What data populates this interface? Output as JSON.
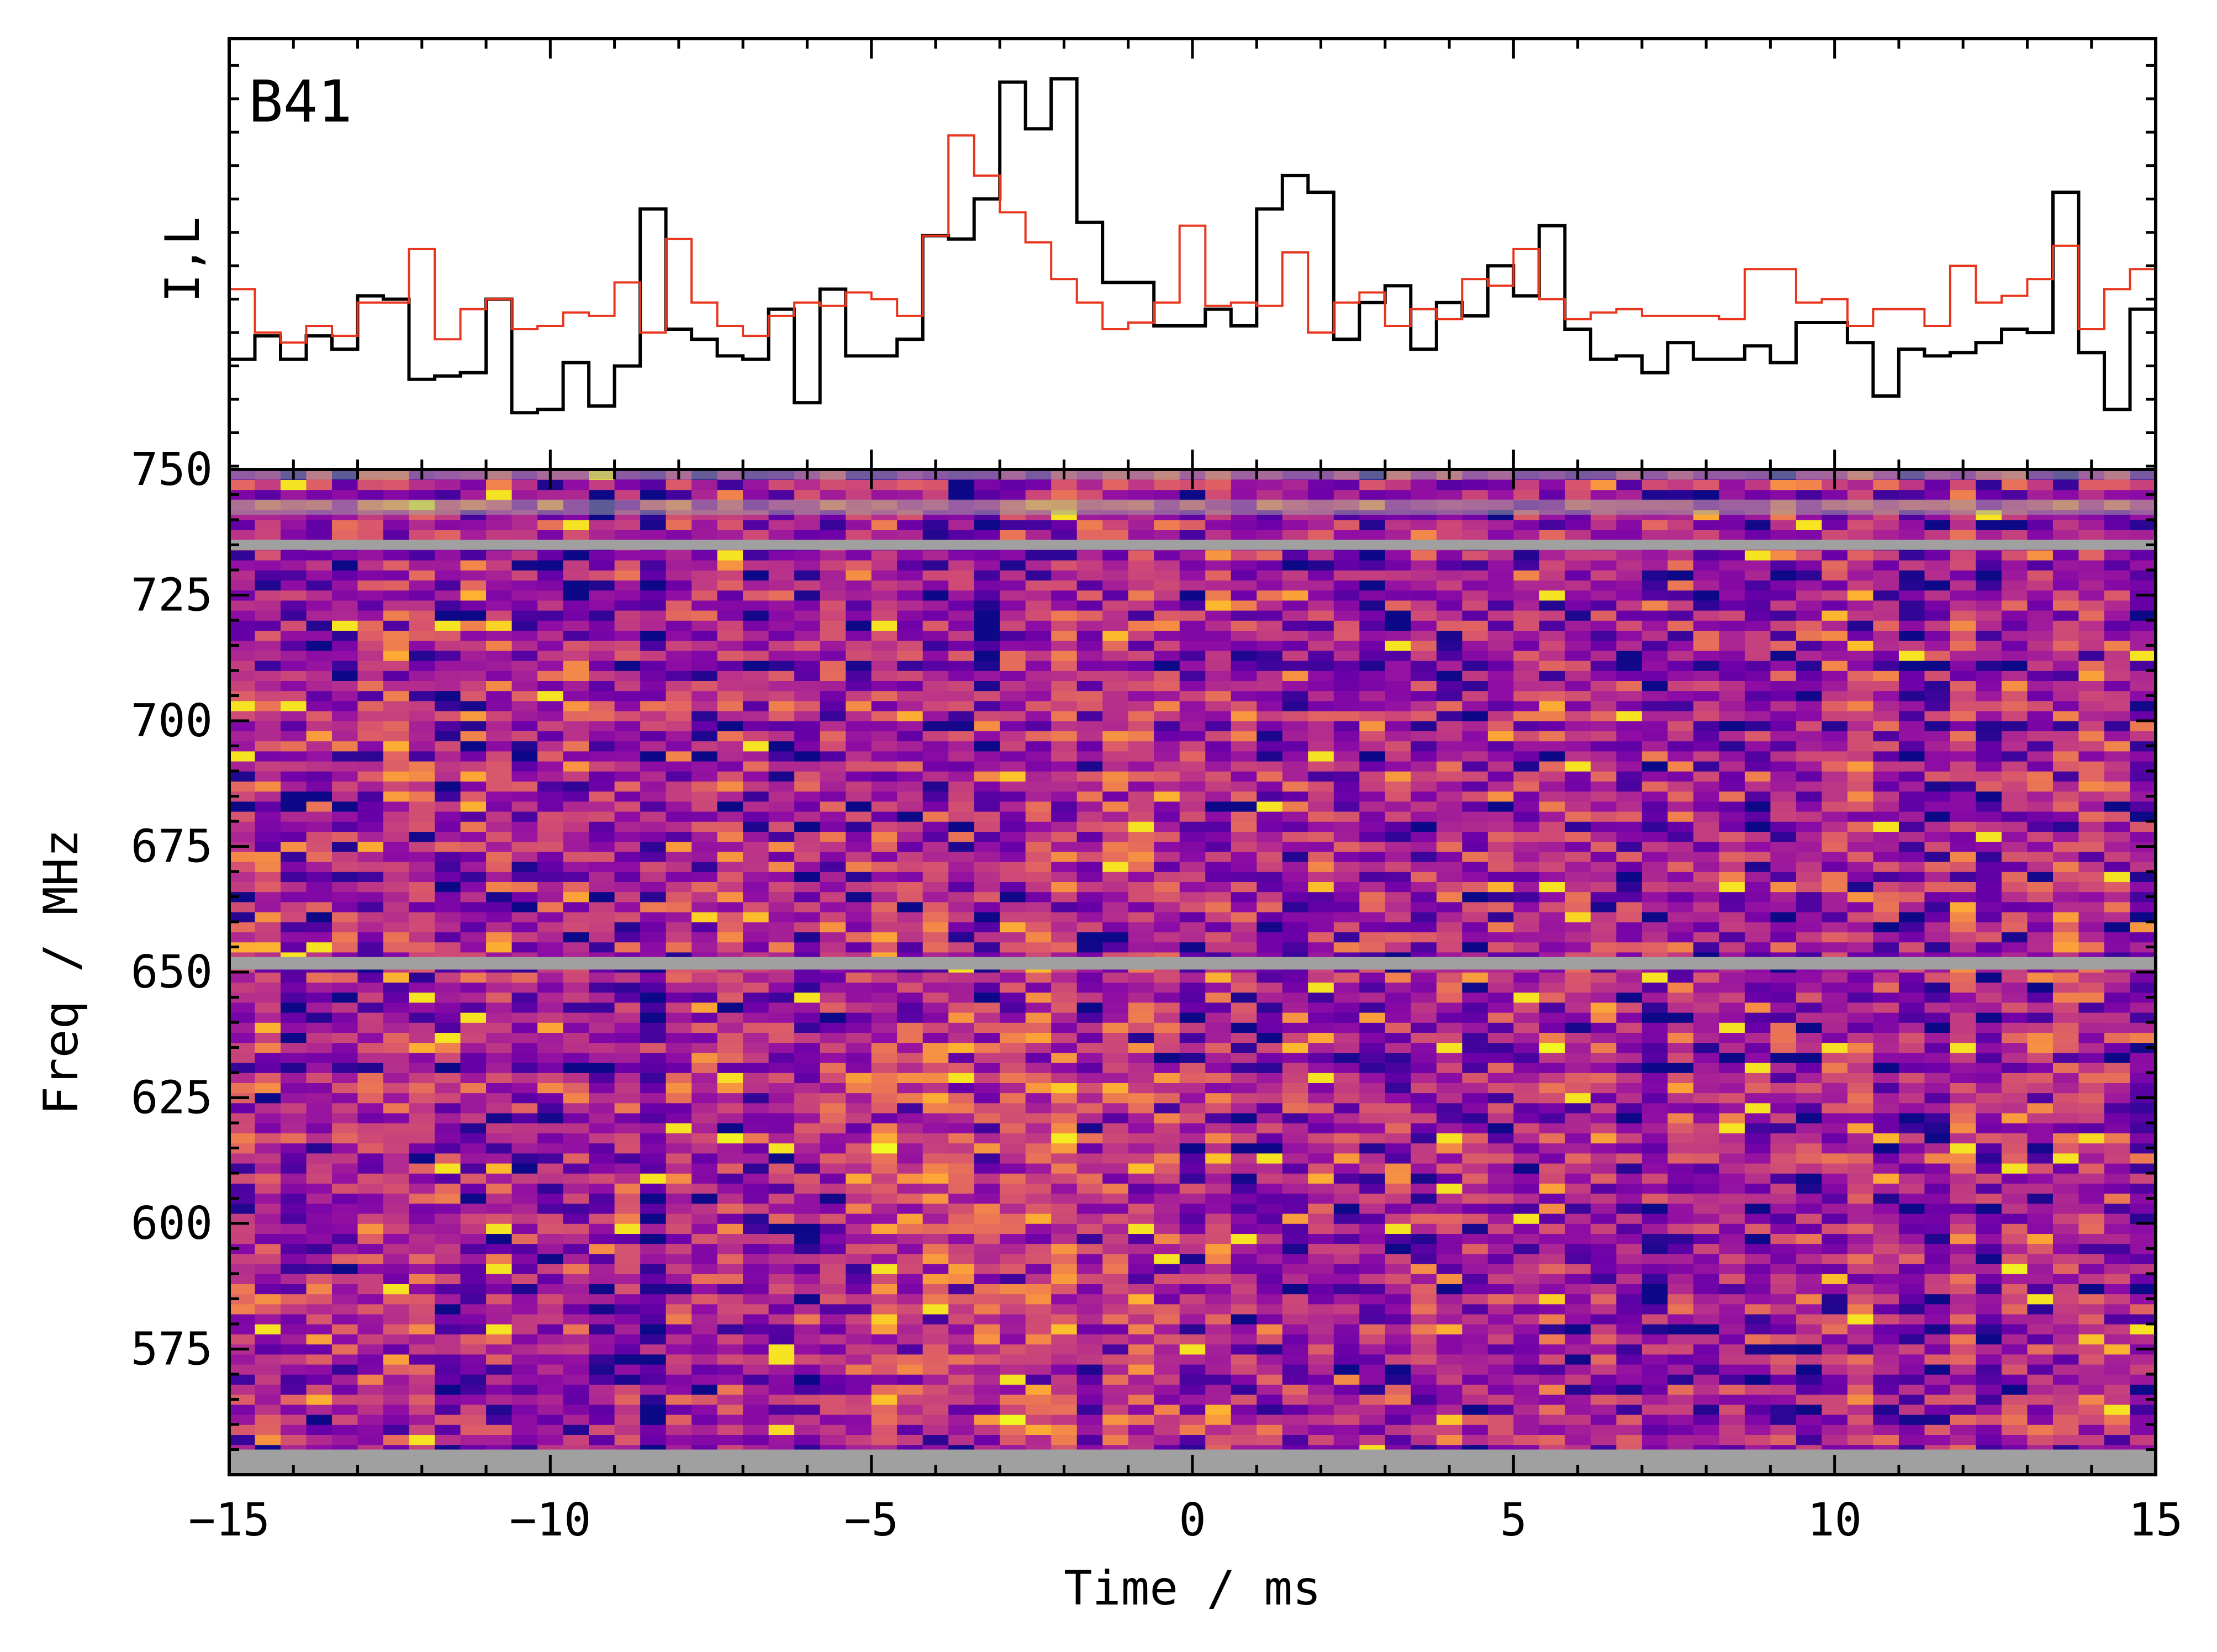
{
  "chart_data": [
    {
      "type": "line",
      "panel": "profile",
      "label": "B41",
      "ylabel": "I,L",
      "xlim": [
        -15,
        15
      ],
      "ylim": [
        -1.05,
        5.4
      ],
      "step": true,
      "colors": {
        "I": "#000000",
        "L": "#e8361e"
      },
      "x": [
        -15.0,
        -14.6,
        -14.2,
        -13.8,
        -13.4,
        -13.0,
        -12.6,
        -12.2,
        -11.8,
        -11.4,
        -11.0,
        -10.6,
        -10.2,
        -9.8,
        -9.4,
        -9.0,
        -8.6,
        -8.2,
        -7.8,
        -7.4,
        -7.0,
        -6.6,
        -6.2,
        -5.8,
        -5.4,
        -5.0,
        -4.6,
        -4.2,
        -3.8,
        -3.4,
        -3.0,
        -2.6,
        -2.2,
        -1.8,
        -1.4,
        -1.0,
        -0.6,
        -0.2,
        0.2,
        0.6,
        1.0,
        1.4,
        1.8,
        2.2,
        2.6,
        3.0,
        3.4,
        3.8,
        4.2,
        4.6,
        5.0,
        5.4,
        5.8,
        6.2,
        6.6,
        7.0,
        7.4,
        7.8,
        8.2,
        8.6,
        9.0,
        9.4,
        9.8,
        10.2,
        10.6,
        11.0,
        11.4,
        11.8,
        12.2,
        12.6,
        13.0,
        13.4,
        13.8,
        14.2,
        14.6
      ],
      "series": [
        {
          "key": "I",
          "values": [
            0.6,
            0.95,
            0.6,
            0.95,
            0.75,
            1.55,
            1.5,
            0.3,
            0.35,
            0.4,
            1.5,
            -0.2,
            -0.15,
            0.55,
            -0.1,
            0.5,
            2.85,
            1.05,
            0.9,
            0.65,
            0.6,
            1.35,
            -0.05,
            1.65,
            0.65,
            0.65,
            0.9,
            2.45,
            2.4,
            3.0,
            4.75,
            4.05,
            4.8,
            2.65,
            1.75,
            1.75,
            1.1,
            1.1,
            1.35,
            1.1,
            2.85,
            3.35,
            3.1,
            0.9,
            1.45,
            1.7,
            0.75,
            1.45,
            1.25,
            2.0,
            1.55,
            2.6,
            1.05,
            0.6,
            0.65,
            0.4,
            0.85,
            0.6,
            0.6,
            0.8,
            0.55,
            1.15,
            1.15,
            0.85,
            0.05,
            0.75,
            0.65,
            0.7,
            0.85,
            1.05,
            1.0,
            3.1,
            0.7,
            -0.15,
            1.35
          ]
        },
        {
          "key": "L",
          "values": [
            1.65,
            1.0,
            0.85,
            1.1,
            0.95,
            1.45,
            1.45,
            2.25,
            0.9,
            1.35,
            1.5,
            1.05,
            1.1,
            1.3,
            1.25,
            1.75,
            1.0,
            2.4,
            1.45,
            1.1,
            0.95,
            1.25,
            1.45,
            1.4,
            1.6,
            1.5,
            1.25,
            2.45,
            3.95,
            3.35,
            2.8,
            2.35,
            1.8,
            1.45,
            1.05,
            1.15,
            1.45,
            2.6,
            1.4,
            1.45,
            1.4,
            2.2,
            1.0,
            1.45,
            1.6,
            1.1,
            1.35,
            1.2,
            1.8,
            1.7,
            2.25,
            1.5,
            1.2,
            1.3,
            1.35,
            1.25,
            1.25,
            1.25,
            1.2,
            1.95,
            1.95,
            1.45,
            1.5,
            1.1,
            1.35,
            1.35,
            1.1,
            2.0,
            1.45,
            1.55,
            1.8,
            2.3,
            1.05,
            1.65,
            1.95
          ]
        }
      ]
    },
    {
      "type": "heatmap",
      "panel": "dynamic-spectrum",
      "xlabel": "Time / ms",
      "ylabel": "Freq / MHz",
      "xlim": [
        -15,
        15
      ],
      "ylim": [
        550,
        750
      ],
      "xticks": [
        -15,
        -10,
        -5,
        0,
        5,
        10,
        15
      ],
      "xtick_labels": [
        "−15",
        "−10",
        "−5",
        "0",
        "5",
        "10",
        "15"
      ],
      "yticks": [
        575,
        600,
        625,
        650,
        675,
        700,
        725,
        750
      ],
      "colormap": "plasma",
      "masked_bands_mhz": [
        [
          549.5,
          555
        ],
        [
          650.5,
          653
        ],
        [
          734,
          736
        ],
        [
          741,
          744
        ],
        [
          748,
          750
        ]
      ],
      "mask_color": "#a0a0a0",
      "burst": {
        "peak_time_ms": -3.4,
        "peak_freq_mhz": 600,
        "freq_range_mhz": [
          555,
          690
        ],
        "width_ms": 1.8
      },
      "time_bins": 75,
      "freq_channels": 100
    }
  ]
}
